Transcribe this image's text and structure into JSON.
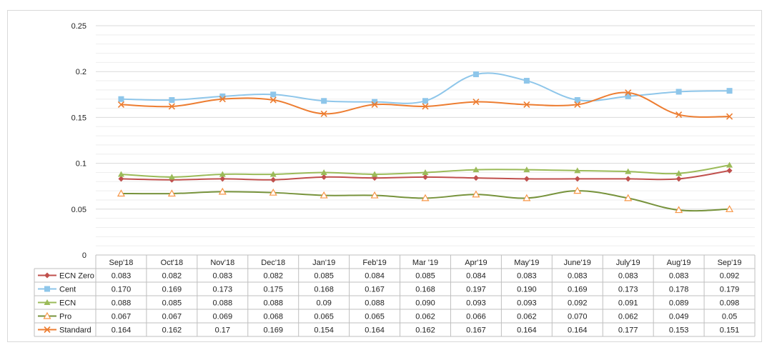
{
  "chart_data": {
    "type": "line",
    "title": "",
    "xlabel": "",
    "ylabel": "",
    "ylim": [
      0,
      0.25
    ],
    "yticks": [
      "0",
      "0.05",
      "0.1",
      "0.15",
      "0.2",
      "0.25"
    ],
    "grid": true,
    "legend": "data-table-left",
    "categories": [
      "Sep'18",
      "Oct'18",
      "Nov'18",
      "Dec'18",
      "Jan'19",
      "Feb'19",
      "Mar '19",
      "Apr'19",
      "May'19",
      "June'19",
      "July'19",
      "Aug'19",
      "Sep'19"
    ],
    "series": [
      {
        "name": "ECN Zero",
        "color": "#c0504d",
        "marker": "diamond",
        "values": [
          0.083,
          0.082,
          0.083,
          0.082,
          0.085,
          0.084,
          0.085,
          0.084,
          0.083,
          0.083,
          0.083,
          0.083,
          0.092
        ],
        "labels": [
          "0.083",
          "0.082",
          "0.083",
          "0.082",
          "0.085",
          "0.084",
          "0.085",
          "0.084",
          "0.083",
          "0.083",
          "0.083",
          "0.083",
          "0.092"
        ]
      },
      {
        "name": "Cent",
        "color": "#8ec6ea",
        "marker": "square",
        "values": [
          0.17,
          0.169,
          0.173,
          0.175,
          0.168,
          0.167,
          0.168,
          0.197,
          0.19,
          0.169,
          0.173,
          0.178,
          0.179
        ],
        "labels": [
          "0.170",
          "0.169",
          "0.173",
          "0.175",
          "0.168",
          "0.167",
          "0.168",
          "0.197",
          "0.190",
          "0.169",
          "0.173",
          "0.178",
          "0.179"
        ]
      },
      {
        "name": "ECN",
        "color": "#9bbb59",
        "marker": "triangle",
        "values": [
          0.088,
          0.085,
          0.088,
          0.088,
          0.09,
          0.088,
          0.09,
          0.093,
          0.093,
          0.092,
          0.091,
          0.089,
          0.098
        ],
        "labels": [
          "0.088",
          "0.085",
          "0.088",
          "0.088",
          "0.09",
          "0.088",
          "0.090",
          "0.093",
          "0.093",
          "0.092",
          "0.091",
          "0.089",
          "0.098"
        ]
      },
      {
        "name": "Pro",
        "color": "#77933c",
        "marker": "triangle-open",
        "marker_color": "#f79646",
        "values": [
          0.067,
          0.067,
          0.069,
          0.068,
          0.065,
          0.065,
          0.062,
          0.066,
          0.062,
          0.07,
          0.062,
          0.049,
          0.05
        ],
        "labels": [
          "0.067",
          "0.067",
          "0.069",
          "0.068",
          "0.065",
          "0.065",
          "0.062",
          "0.066",
          "0.062",
          "0.070",
          "0.062",
          "0.049",
          "0.05"
        ]
      },
      {
        "name": "Standard",
        "color": "#ed7d31",
        "marker": "x",
        "values": [
          0.164,
          0.162,
          0.17,
          0.169,
          0.154,
          0.164,
          0.162,
          0.167,
          0.164,
          0.164,
          0.177,
          0.153,
          0.151
        ],
        "labels": [
          "0.164",
          "0.162",
          "0.17",
          "0.169",
          "0.154",
          "0.164",
          "0.162",
          "0.167",
          "0.164",
          "0.164",
          "0.177",
          "0.153",
          "0.151"
        ]
      }
    ]
  }
}
